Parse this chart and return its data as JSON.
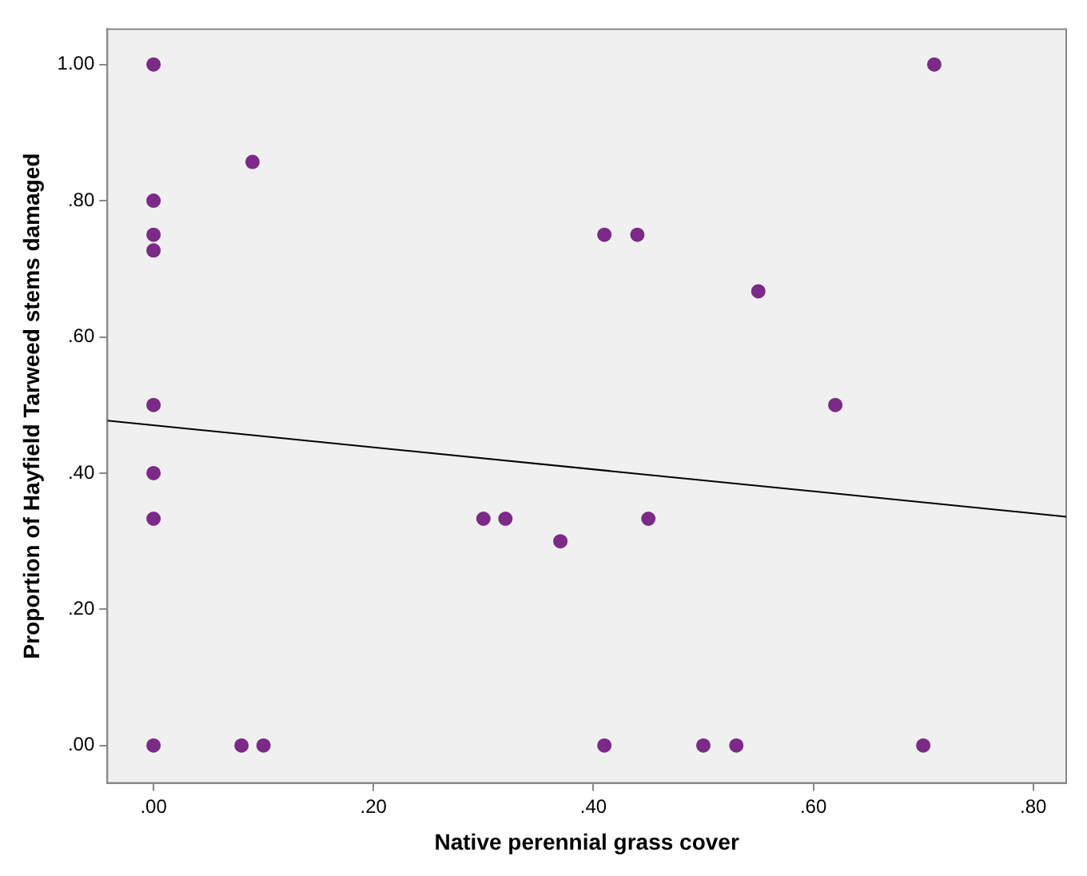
{
  "chart_data": {
    "type": "scatter",
    "xlabel": "Native perennial grass cover",
    "ylabel": "Proportion of Hayfield Tarweed stems damaged",
    "series": [
      {
        "marker": "circle",
        "color": "#7b2a87",
        "x": [
          0,
          0,
          0,
          0,
          0,
          0,
          0,
          0,
          0.09,
          0.41,
          0.44,
          0.55,
          0.62,
          0.71,
          0.3,
          0.32,
          0.37,
          0.45,
          0.08,
          0.1,
          0.41,
          0.5,
          0.53,
          0.7
        ],
        "values": [
          1.0,
          0.8,
          0.75,
          0.727,
          0.5,
          0.4,
          0.333,
          0,
          0.857,
          0.75,
          0.75,
          0.667,
          0.5,
          1.0,
          0.333,
          0.333,
          0.3,
          0.333,
          0,
          0,
          0,
          0,
          0,
          0
        ]
      },
      {
        "type": "line",
        "marker": "none",
        "color": "#000000",
        "x": [
          -0.042,
          0.83
        ],
        "values": [
          0.477,
          0.336
        ]
      }
    ],
    "xlim": [
      -0.042,
      0.83
    ],
    "ylim": [
      -0.055,
      1.052
    ],
    "xticks": [
      {
        "value": 0,
        "label": ".00"
      },
      {
        "value": 0.2,
        "label": ".20"
      },
      {
        "value": 0.4,
        "label": ".40"
      },
      {
        "value": 0.6,
        "label": ".60"
      },
      {
        "value": 0.8,
        "label": ".80"
      }
    ],
    "yticks": [
      {
        "value": 0,
        "label": ".00"
      },
      {
        "value": 0.2,
        "label": ".20"
      },
      {
        "value": 0.4,
        "label": ".40"
      },
      {
        "value": 0.6,
        "label": ".60"
      },
      {
        "value": 0.8,
        "label": ".80"
      },
      {
        "value": 1,
        "label": "1.00"
      }
    ],
    "grid": false,
    "legend": false,
    "line_style": "solid"
  }
}
